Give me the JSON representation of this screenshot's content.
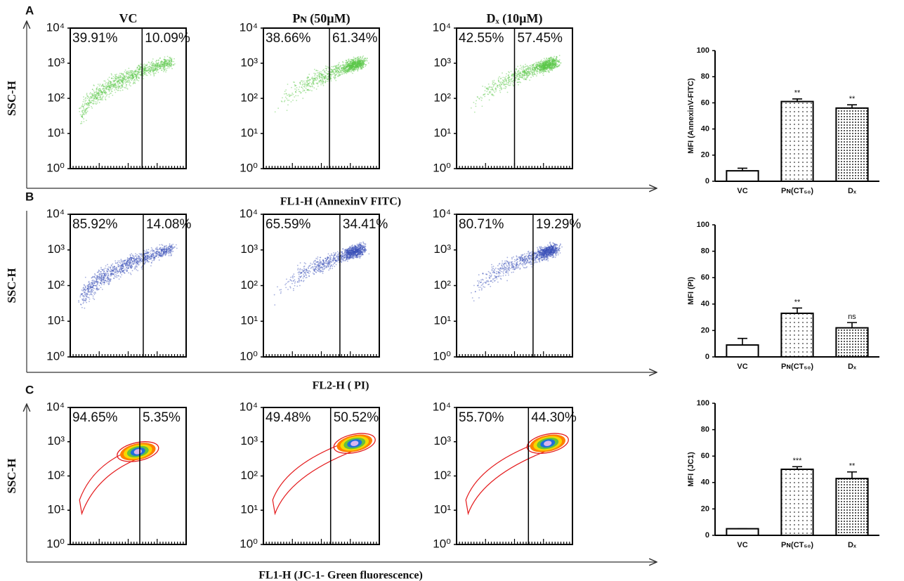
{
  "panels": [
    {
      "label": "A",
      "y_label": "SSC-H",
      "x_label": "FL1-H  (AnnexinV  FITC)"
    },
    {
      "label": "B",
      "y_label": "SSC-H",
      "x_label": "FL2-H  ( PI)"
    },
    {
      "label": "C",
      "y_label": "SSC-H",
      "x_label": "FL1-H (JC-1- Green fluorescence)"
    }
  ],
  "chart_data": [
    {
      "type": "flow",
      "title": "VC",
      "style": "dot",
      "color": "#5cc84a",
      "log": true,
      "ylim": [
        1,
        10000
      ],
      "yticks": [
        {
          "value": 1,
          "label": "10⁰"
        },
        {
          "value": 10,
          "label": "10¹"
        },
        {
          "value": 100,
          "label": "10²"
        },
        {
          "value": 1000,
          "label": "10³"
        },
        {
          "value": 10000,
          "label": "10⁴"
        }
      ],
      "values": [
        39.91,
        10.09
      ],
      "value_labels": [
        "39.91%",
        "10.09%"
      ]
    },
    {
      "type": "flow",
      "title": "Pɴ (50µM)",
      "style": "dot",
      "color": "#5cc84a",
      "log": true,
      "ylim": [
        1,
        10000
      ],
      "yticks": [
        {
          "value": 1,
          "label": "10⁰"
        },
        {
          "value": 10,
          "label": "10¹"
        },
        {
          "value": 100,
          "label": "10²"
        },
        {
          "value": 1000,
          "label": "10³"
        },
        {
          "value": 10000,
          "label": "10⁴"
        }
      ],
      "values": [
        38.66,
        61.34
      ],
      "value_labels": [
        "38.66%",
        "61.34%"
      ]
    },
    {
      "type": "flow",
      "title": "Dₓ (10µM)",
      "style": "dot",
      "color": "#5cc84a",
      "log": true,
      "ylim": [
        1,
        10000
      ],
      "yticks": [
        {
          "value": 1,
          "label": "10⁰"
        },
        {
          "value": 10,
          "label": "10¹"
        },
        {
          "value": 100,
          "label": "10²"
        },
        {
          "value": 1000,
          "label": "10³"
        },
        {
          "value": 10000,
          "label": "10⁴"
        }
      ],
      "values": [
        42.55,
        57.45
      ],
      "value_labels": [
        "42.55%",
        "57.45%"
      ]
    },
    {
      "type": "bar",
      "y_label": "MFI (AnnexinV-FITC)",
      "categories": [
        "VC",
        "Pɴ(CT₅₀)",
        "Dₓ"
      ],
      "values": [
        8,
        61,
        56
      ],
      "errors": [
        2,
        2,
        2.5
      ],
      "annotations": [
        null,
        "**",
        "**"
      ],
      "ylim": [
        0,
        100
      ],
      "yticks": [
        0,
        20,
        40,
        60,
        80,
        100
      ]
    },
    {
      "type": "flow",
      "style": "dot",
      "color": "#3a4fb8",
      "log": true,
      "ylim": [
        1,
        10000
      ],
      "yticks": [
        {
          "value": 1,
          "label": "10⁰"
        },
        {
          "value": 10,
          "label": "10¹"
        },
        {
          "value": 100,
          "label": "10²"
        },
        {
          "value": 1000,
          "label": "10³"
        },
        {
          "value": 10000,
          "label": "10⁴"
        }
      ],
      "values": [
        85.92,
        14.08
      ],
      "value_labels": [
        "85.92%",
        "14.08%"
      ]
    },
    {
      "type": "flow",
      "style": "dot",
      "color": "#3a4fb8",
      "log": true,
      "ylim": [
        1,
        10000
      ],
      "yticks": [
        {
          "value": 1,
          "label": "10⁰"
        },
        {
          "value": 10,
          "label": "10¹"
        },
        {
          "value": 100,
          "label": "10²"
        },
        {
          "value": 1000,
          "label": "10³"
        },
        {
          "value": 10000,
          "label": "10⁴"
        }
      ],
      "values": [
        65.59,
        34.41
      ],
      "value_labels": [
        "65.59%",
        "34.41%"
      ]
    },
    {
      "type": "flow",
      "style": "dot",
      "color": "#3a4fb8",
      "log": true,
      "ylim": [
        1,
        10000
      ],
      "yticks": [
        {
          "value": 1,
          "label": "10⁰"
        },
        {
          "value": 10,
          "label": "10¹"
        },
        {
          "value": 100,
          "label": "10²"
        },
        {
          "value": 1000,
          "label": "10³"
        },
        {
          "value": 10000,
          "label": "10⁴"
        }
      ],
      "values": [
        80.71,
        19.29
      ],
      "value_labels": [
        "80.71%",
        "19.29%"
      ]
    },
    {
      "type": "bar",
      "y_label": "MFI (PI)",
      "categories": [
        "VC",
        "Pɴ(CT₅₀)",
        "Dₓ"
      ],
      "values": [
        9,
        33,
        22
      ],
      "errors": [
        5,
        4,
        4
      ],
      "annotations": [
        null,
        "**",
        "ns"
      ],
      "ylim": [
        0,
        100
      ],
      "yticks": [
        0,
        20,
        40,
        60,
        80,
        100
      ]
    },
    {
      "type": "flow",
      "style": "contour",
      "color": "#e41a1c",
      "log": true,
      "ylim": [
        1,
        10000
      ],
      "yticks": [
        {
          "value": 1,
          "label": "10⁰"
        },
        {
          "value": 10,
          "label": "10¹"
        },
        {
          "value": 100,
          "label": "10²"
        },
        {
          "value": 1000,
          "label": "10³"
        },
        {
          "value": 10000,
          "label": "10⁴"
        }
      ],
      "values": [
        94.65,
        5.35
      ],
      "value_labels": [
        "94.65%",
        "5.35%"
      ]
    },
    {
      "type": "flow",
      "style": "contour",
      "color": "#e41a1c",
      "log": true,
      "ylim": [
        1,
        10000
      ],
      "yticks": [
        {
          "value": 1,
          "label": "10⁰"
        },
        {
          "value": 10,
          "label": "10¹"
        },
        {
          "value": 100,
          "label": "10²"
        },
        {
          "value": 1000,
          "label": "10³"
        },
        {
          "value": 10000,
          "label": "10⁴"
        }
      ],
      "values": [
        49.48,
        50.52
      ],
      "value_labels": [
        "49.48%",
        "50.52%"
      ]
    },
    {
      "type": "flow",
      "style": "contour",
      "color": "#e41a1c",
      "log": true,
      "ylim": [
        1,
        10000
      ],
      "yticks": [
        {
          "value": 1,
          "label": "10⁰"
        },
        {
          "value": 10,
          "label": "10¹"
        },
        {
          "value": 100,
          "label": "10²"
        },
        {
          "value": 1000,
          "label": "10³"
        },
        {
          "value": 10000,
          "label": "10⁴"
        }
      ],
      "values": [
        55.7,
        44.3
      ],
      "value_labels": [
        "55.70%",
        "44.30%"
      ]
    },
    {
      "type": "bar",
      "y_label": "MFI (JC1)",
      "categories": [
        "VC",
        "Pɴ(CT₅₀)",
        "Dₓ"
      ],
      "values": [
        5,
        50,
        43
      ],
      "errors": [
        0,
        2,
        5
      ],
      "annotations": [
        null,
        "***",
        "**"
      ],
      "ylim": [
        0,
        100
      ],
      "yticks": [
        0,
        20,
        40,
        60,
        80,
        100
      ]
    }
  ]
}
